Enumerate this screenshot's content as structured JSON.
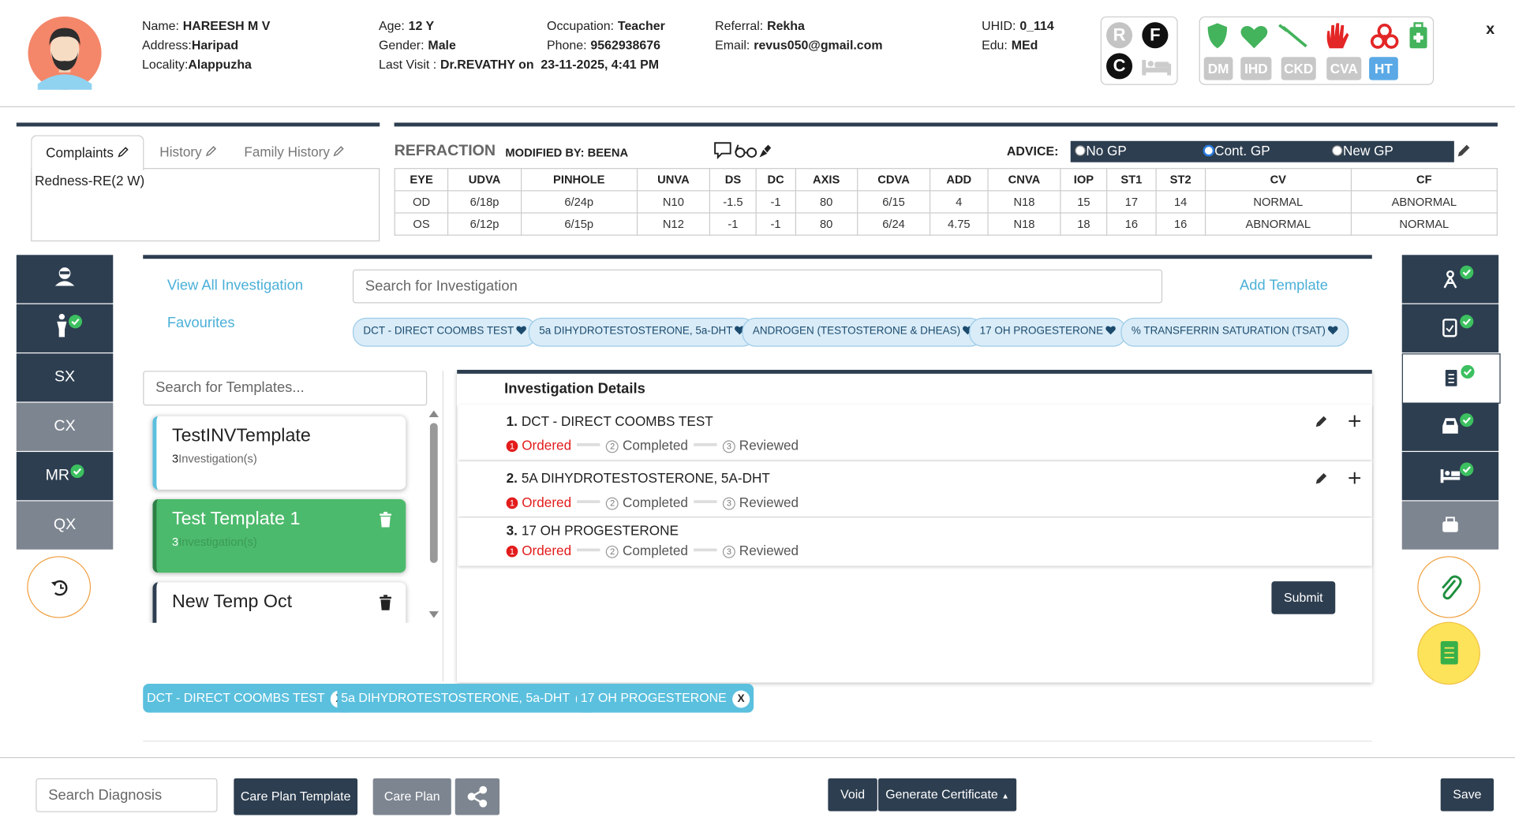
{
  "patient": {
    "name_label": "Name:",
    "name": "HAREESH M V",
    "address_label": "Address:",
    "address": "Haripad",
    "locality_label": "Locality:",
    "locality": "Alappuzha",
    "age_label": "Age:",
    "age": "12 Y",
    "gender_label": "Gender:",
    "gender": "Male",
    "last_visit_label": "Last Visit :",
    "last_visit": "Dr.REVATHY on  23-11-2025, 4:41 PM",
    "occupation_label": "Occupation:",
    "occupation": "Teacher",
    "phone_label": "Phone:",
    "phone": "9562938676",
    "referral_label": "Referral:",
    "referral": "Rekha",
    "email_label": "Email:",
    "email": "revus050@gmail.com",
    "uhid_label": "UHID:",
    "uhid": "0_114",
    "edu_label": "Edu:",
    "edu": "MEd"
  },
  "badges": [
    "R",
    "F",
    "C"
  ],
  "conditions": [
    "DM",
    "IHD",
    "CKD",
    "CVA",
    "HT"
  ],
  "close": "x",
  "complaints": {
    "tabs": [
      "Complaints",
      "History",
      "Family History"
    ],
    "text": "Redness-RE(2 W)"
  },
  "refraction": {
    "title": "REFRACTION",
    "modified_label": "MODIFIED BY:",
    "modified_by": "BEENA",
    "advice_label": "ADVICE:",
    "advice_options": [
      "No GP",
      "Cont. GP",
      "New GP"
    ],
    "advice_selected": 1,
    "columns": [
      "EYE",
      "UDVA",
      "PINHOLE",
      "UNVA",
      "DS",
      "DC",
      "AXIS",
      "CDVA",
      "ADD",
      "CNVA",
      "IOP",
      "ST1",
      "ST2",
      "CV",
      "CF"
    ],
    "rows": [
      [
        "OD",
        "6/18p",
        "6/24p",
        "N10",
        "-1.5",
        "-1",
        "80",
        "6/15",
        "4",
        "N18",
        "15",
        "17",
        "14",
        "NORMAL",
        "ABNORMAL"
      ],
      [
        "OS",
        "6/12p",
        "6/15p",
        "N12",
        "-1",
        "-1",
        "80",
        "6/24",
        "4.75",
        "N18",
        "18",
        "16",
        "16",
        "ABNORMAL",
        "NORMAL"
      ]
    ]
  },
  "left_nav": [
    "SX",
    "CX",
    "MR",
    "QX"
  ],
  "investigation": {
    "view_all": "View All Investigation",
    "favourites_label": "Favourites",
    "search_placeholder": "Search for Investigation",
    "add_template": "Add Template",
    "favourites": [
      "DCT - DIRECT COOMBS TEST",
      "5a DIHYDROTESTOSTERONE, 5a-DHT",
      "ANDROGEN (TESTOSTERONE & DHEAS)",
      "17 OH PROGESTERONE",
      "% TRANSFERRIN SATURATION (TSAT)"
    ],
    "template_search_placeholder": "Search for Templates...",
    "templates": [
      {
        "name": "TestINVTemplate",
        "count": "3",
        "count_label": "Investigation(s)"
      },
      {
        "name": "Test Template 1",
        "count": "3",
        "count_label": "Investigation(s)"
      },
      {
        "name": "New Temp Oct"
      }
    ],
    "details_title": "Investigation Details",
    "steps": [
      {
        "num": "1",
        "label": "Ordered"
      },
      {
        "num": "2",
        "label": "Completed"
      },
      {
        "num": "3",
        "label": "Reviewed"
      }
    ],
    "items": [
      {
        "num": "1.",
        "name": "DCT - DIRECT COOMBS TEST",
        "actions": true
      },
      {
        "num": "2.",
        "name": "5A DIHYDROTESTOSTERONE, 5A-DHT",
        "actions": true
      },
      {
        "num": "3.",
        "name": "17 OH PROGESTERONE",
        "actions": false
      }
    ],
    "submit": "Submit",
    "selected": [
      "DCT - DIRECT COOMBS TEST",
      "5a DIHYDROTESTOSTERONE, 5a-DHT",
      "17 OH PROGESTERONE"
    ],
    "remove": "X"
  },
  "footer": {
    "diagnosis_placeholder": "Search Diagnosis",
    "care_plan_template": "Care Plan Template",
    "care_plan": "Care Plan",
    "void": "Void",
    "generate_certificate": "Generate Certificate",
    "save": "Save"
  }
}
